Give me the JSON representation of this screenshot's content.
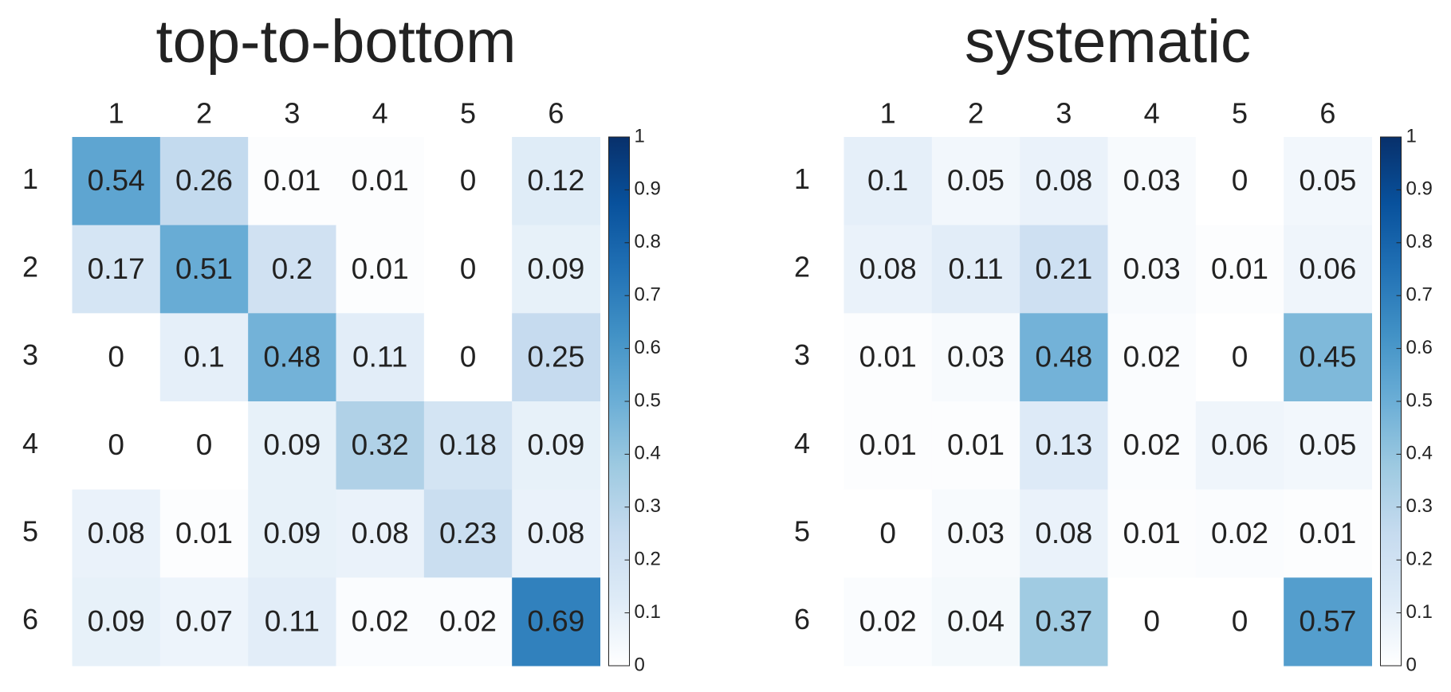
{
  "chart_data": [
    {
      "type": "heatmap",
      "title": "top-to-bottom",
      "x": [
        "1",
        "2",
        "3",
        "4",
        "5",
        "6"
      ],
      "y": [
        "1",
        "2",
        "3",
        "4",
        "5",
        "6"
      ],
      "values": [
        [
          0.54,
          0.26,
          0.01,
          0.01,
          0,
          0.12
        ],
        [
          0.17,
          0.51,
          0.2,
          0.01,
          0,
          0.09
        ],
        [
          0,
          0.1,
          0.48,
          0.11,
          0,
          0.25
        ],
        [
          0,
          0,
          0.09,
          0.32,
          0.18,
          0.09
        ],
        [
          0.08,
          0.01,
          0.09,
          0.08,
          0.23,
          0.08
        ],
        [
          0.09,
          0.07,
          0.11,
          0.02,
          0.02,
          0.69
        ]
      ],
      "clim": [
        0,
        1
      ],
      "cticks": [
        0,
        0.1,
        0.2,
        0.3,
        0.4,
        0.5,
        0.6,
        0.7,
        0.8,
        0.9,
        1
      ],
      "colormap": [
        "#ffffff",
        "#deebf7",
        "#c6dbef",
        "#9ecae1",
        "#6baed6",
        "#4292c6",
        "#2171b5",
        "#08519c",
        "#08306b"
      ]
    },
    {
      "type": "heatmap",
      "title": "systematic",
      "x": [
        "1",
        "2",
        "3",
        "4",
        "5",
        "6"
      ],
      "y": [
        "1",
        "2",
        "3",
        "4",
        "5",
        "6"
      ],
      "values": [
        [
          0.1,
          0.05,
          0.08,
          0.03,
          0,
          0.05
        ],
        [
          0.08,
          0.11,
          0.21,
          0.03,
          0.01,
          0.06
        ],
        [
          0.01,
          0.03,
          0.48,
          0.02,
          0,
          0.45
        ],
        [
          0.01,
          0.01,
          0.13,
          0.02,
          0.06,
          0.05
        ],
        [
          0,
          0.03,
          0.08,
          0.01,
          0.02,
          0.01
        ],
        [
          0.02,
          0.04,
          0.37,
          0,
          0,
          0.57
        ]
      ],
      "clim": [
        0,
        1
      ],
      "cticks": [
        0,
        0.1,
        0.2,
        0.3,
        0.4,
        0.5,
        0.6,
        0.7,
        0.8,
        0.9,
        1
      ],
      "colormap": [
        "#ffffff",
        "#deebf7",
        "#c6dbef",
        "#9ecae1",
        "#6baed6",
        "#4292c6",
        "#2171b5",
        "#08519c",
        "#08306b"
      ]
    }
  ]
}
